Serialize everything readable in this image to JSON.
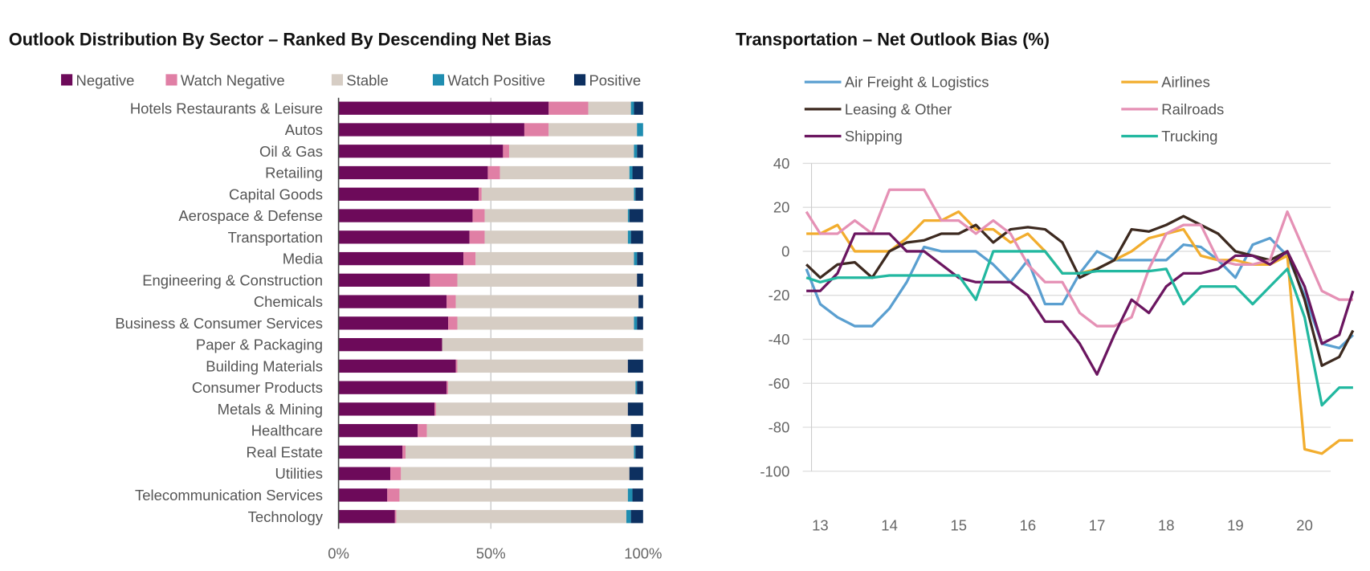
{
  "chart_data": [
    {
      "type": "bar",
      "stacked": true,
      "orientation": "horizontal",
      "title": "Outlook Distribution By Sector – Ranked By Descending Net Bias",
      "xlim": [
        0,
        100
      ],
      "xticks": [
        "0%",
        "50%",
        "100%"
      ],
      "legend_position": "top",
      "categories": [
        "Hotels Restaurants & Leisure",
        "Autos",
        "Oil & Gas",
        "Retailing",
        "Capital Goods",
        "Aerospace & Defense",
        "Transportation",
        "Media",
        "Engineering & Construction",
        "Chemicals",
        "Business & Consumer Services",
        "Paper & Packaging",
        "Building Materials",
        "Consumer Products",
        "Metals & Mining",
        "Healthcare",
        "Real Estate",
        "Utilities",
        "Telecommunication Services",
        "Technology"
      ],
      "series": [
        {
          "name": "Negative",
          "color": "#6d0a5a",
          "values": [
            69,
            61,
            54,
            49,
            46,
            44,
            43,
            41,
            30,
            35.5,
            36,
            34,
            38.5,
            35.5,
            31.5,
            26,
            21,
            17,
            16,
            18.5
          ]
        },
        {
          "name": "Watch Negative",
          "color": "#e07fa5",
          "values": [
            13,
            8,
            2,
            4,
            1,
            4,
            5,
            4,
            9,
            3,
            3,
            0,
            0.5,
            0.5,
            0.5,
            3,
            1,
            3.5,
            4,
            0.5
          ]
        },
        {
          "name": "Stable",
          "color": "#d6cdc4",
          "values": [
            14,
            29,
            41,
            42.5,
            50,
            47,
            47,
            52,
            59,
            60,
            58,
            66,
            56,
            61.5,
            63,
            67,
            75,
            75,
            75,
            75.5
          ]
        },
        {
          "name": "Watch Positive",
          "color": "#1f8db0",
          "values": [
            1,
            2,
            1,
            1,
            0.5,
            0.5,
            1,
            1,
            0,
            0,
            1,
            0,
            0,
            0.5,
            0,
            0,
            0.5,
            0,
            1.5,
            1.5
          ]
        },
        {
          "name": "Positive",
          "color": "#0d3060",
          "values": [
            3,
            0,
            2,
            3.5,
            2.5,
            4.5,
            4,
            2,
            2,
            1.5,
            2,
            0,
            5,
            2,
            5,
            4,
            2.5,
            4.5,
            3.5,
            4
          ]
        }
      ]
    },
    {
      "type": "line",
      "title": "Transportation – Net Outlook Bias (%)",
      "ylim": [
        -100,
        40
      ],
      "yticks": [
        "40",
        "20",
        "0",
        "-20",
        "-40",
        "-60",
        "-80",
        "-100"
      ],
      "xticks": [
        "13",
        "14",
        "15",
        "16",
        "17",
        "18",
        "19",
        "20"
      ],
      "xlim": [
        12.8,
        20.75
      ],
      "grid": true,
      "legend_position": "top",
      "x": [
        12.8,
        13.0,
        13.25,
        13.5,
        13.75,
        14.0,
        14.25,
        14.5,
        14.75,
        15.0,
        15.25,
        15.5,
        15.75,
        16.0,
        16.25,
        16.5,
        16.75,
        17.0,
        17.25,
        17.5,
        17.75,
        18.0,
        18.25,
        18.5,
        18.75,
        19.0,
        19.25,
        19.5,
        19.75,
        20.0,
        20.25,
        20.5,
        20.7
      ],
      "series": [
        {
          "name": "Air Freight & Logistics",
          "color": "#5a9fd0",
          "values": [
            -8,
            -24,
            -30,
            -34,
            -34,
            -26,
            -14,
            2,
            0,
            0,
            0,
            -6,
            -14,
            -4,
            -24,
            -24,
            -10,
            0,
            -4,
            -4,
            -4,
            -4,
            3,
            2,
            -4,
            -12,
            3,
            6,
            -2,
            -20,
            -42,
            -44,
            -38
          ]
        },
        {
          "name": "Airlines",
          "color": "#f2ad2e",
          "values": [
            8,
            8,
            12,
            0,
            0,
            0,
            6,
            14,
            14,
            18,
            10,
            10,
            4,
            8,
            0,
            -10,
            -10,
            -8,
            -4,
            0,
            6,
            8,
            10,
            -2,
            -4,
            -4,
            -6,
            -6,
            -2,
            -90,
            -92,
            -86,
            -86
          ]
        },
        {
          "name": "Leasing & Other",
          "color": "#3d2a20",
          "values": [
            -6,
            -12,
            -6,
            -5,
            -12,
            0,
            4,
            5,
            8,
            8,
            12,
            4,
            10,
            11,
            10,
            4,
            -12,
            -8,
            -4,
            10,
            9,
            12,
            16,
            12,
            8,
            0,
            -2,
            -4,
            0,
            -22,
            -52,
            -48,
            -36
          ]
        },
        {
          "name": "Railroads",
          "color": "#e591b5",
          "values": [
            18,
            8,
            8,
            14,
            8,
            28,
            28,
            28,
            14,
            14,
            8,
            14,
            8,
            -6,
            -14,
            -14,
            -28,
            -34,
            -34,
            -30,
            -8,
            8,
            12,
            12,
            -4,
            -6,
            -6,
            -4,
            18,
            0,
            -18,
            -22,
            -22
          ]
        },
        {
          "name": "Shipping",
          "color": "#6b1660",
          "values": [
            -18,
            -18,
            -10,
            8,
            8,
            8,
            0,
            0,
            -6,
            -12,
            -14,
            -14,
            -14,
            -20,
            -32,
            -32,
            -42,
            -56,
            -38,
            -22,
            -28,
            -16,
            -10,
            -10,
            -8,
            -2,
            -2,
            -6,
            0,
            -16,
            -42,
            -38,
            -18
          ]
        },
        {
          "name": "Trucking",
          "color": "#22b8a0",
          "values": [
            -12,
            -14,
            -12,
            -12,
            -12,
            -11,
            -11,
            -11,
            -11,
            -11,
            -22,
            0,
            0,
            0,
            0,
            -10,
            -10,
            -9,
            -9,
            -9,
            -9,
            -8,
            -24,
            -16,
            -16,
            -16,
            -24,
            -16,
            -8,
            -30,
            -70,
            -62,
            -62
          ]
        }
      ]
    }
  ]
}
